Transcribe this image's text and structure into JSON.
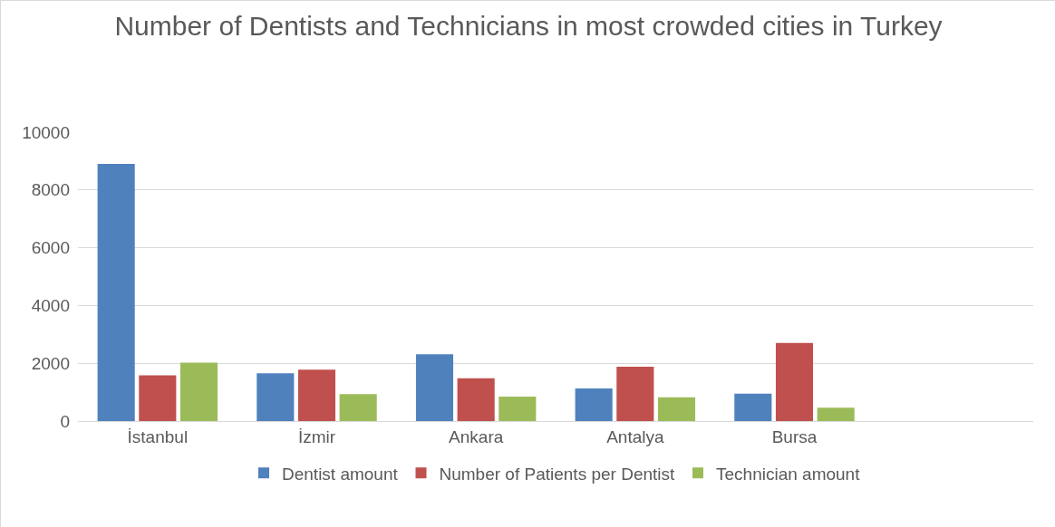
{
  "chart_data": {
    "type": "bar",
    "title": "Number of Dentists and Technicians in most crowded cities in Turkey",
    "categories": [
      "İstanbul",
      "İzmir",
      "Ankara",
      "Antalya",
      "Bursa",
      null
    ],
    "series": [
      {
        "name": "Dentist amount",
        "color": "#4f81bd",
        "values": [
          8900,
          1650,
          2310,
          1130,
          950,
          null
        ]
      },
      {
        "name": "Number of Patients per Dentist",
        "color": "#c0504d",
        "values": [
          1580,
          1780,
          1480,
          1880,
          2700,
          null
        ]
      },
      {
        "name": "Technician amount",
        "color": "#9bbb59",
        "values": [
          2020,
          930,
          850,
          820,
          460,
          null
        ]
      }
    ],
    "ylim": [
      0,
      10000
    ],
    "yticks": [
      0,
      2000,
      4000,
      6000,
      8000,
      10000
    ],
    "grid": "y",
    "legend": "bottom"
  }
}
